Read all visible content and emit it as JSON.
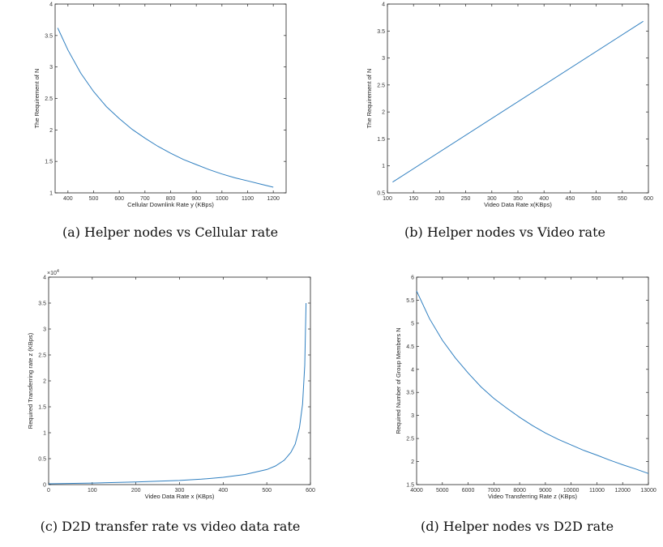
{
  "captions": [
    "(a) Helper nodes vs Cellular rate",
    "(b) Helper nodes vs Video rate",
    "(c) D2D transfer rate vs video data rate",
    "(d) Helper nodes vs D2D rate"
  ],
  "line_color": "#2f7fc0",
  "chart_data": [
    {
      "type": "line",
      "xlabel": "Cellular Downlink Rate y (KBps)",
      "ylabel": "The Requirement of N",
      "xlim": [
        350,
        1250
      ],
      "ylim": [
        1,
        4
      ],
      "xticks": [
        400,
        500,
        600,
        700,
        800,
        900,
        1000,
        1100,
        1200
      ],
      "yticks": [
        1,
        1.5,
        2,
        2.5,
        3,
        3.5,
        4
      ],
      "xtick_labels": [
        "400",
        "500",
        "600",
        "700",
        "800",
        "900",
        "1000",
        "1100",
        "1200"
      ],
      "ytick_labels": [
        "1",
        "1.5",
        "2",
        "2.5",
        "3",
        "3.5",
        "4"
      ],
      "series": [
        {
          "x": [
            360,
            400,
            450,
            500,
            550,
            600,
            650,
            700,
            750,
            800,
            850,
            900,
            950,
            1000,
            1050,
            1100,
            1150,
            1200
          ],
          "y": [
            3.62,
            3.27,
            2.9,
            2.61,
            2.37,
            2.18,
            2.01,
            1.87,
            1.74,
            1.63,
            1.53,
            1.45,
            1.37,
            1.3,
            1.24,
            1.19,
            1.14,
            1.09
          ]
        }
      ]
    },
    {
      "type": "line",
      "xlabel": "Video Data Rate x(KBps)",
      "ylabel": "The Requirement of N",
      "xlim": [
        100,
        600
      ],
      "ylim": [
        0.5,
        4
      ],
      "xticks": [
        100,
        150,
        200,
        250,
        300,
        350,
        400,
        450,
        500,
        550,
        600
      ],
      "yticks": [
        0.5,
        1,
        1.5,
        2,
        2.5,
        3,
        3.5,
        4
      ],
      "xtick_labels": [
        "100",
        "150",
        "200",
        "250",
        "300",
        "350",
        "400",
        "450",
        "500",
        "550",
        "600"
      ],
      "ytick_labels": [
        "0.5",
        "1",
        "1.5",
        "2",
        "2.5",
        "3",
        "3.5",
        "4"
      ],
      "series": [
        {
          "x": [
            110,
            590
          ],
          "y": [
            0.7,
            3.68
          ]
        }
      ]
    },
    {
      "type": "line",
      "xlabel": "Video Data Rate x (KBps)",
      "ylabel": "Required Transferring rate z (KBps)",
      "multiplier": "×10",
      "multiplier_exp": "4",
      "xlim": [
        0,
        600
      ],
      "ylim": [
        0,
        40000
      ],
      "xticks": [
        0,
        100,
        200,
        300,
        400,
        500,
        600
      ],
      "yticks": [
        0,
        5000,
        10000,
        15000,
        20000,
        25000,
        30000,
        35000,
        40000
      ],
      "xtick_labels": [
        "0",
        "100",
        "200",
        "300",
        "400",
        "500",
        "600"
      ],
      "ytick_labels": [
        "0",
        "0.5",
        "1",
        "1.5",
        "2",
        "2.5",
        "3",
        "3.5",
        "4"
      ],
      "series": [
        {
          "x": [
            0,
            100,
            200,
            300,
            350,
            400,
            450,
            500,
            520,
            540,
            555,
            565,
            575,
            582,
            587,
            590
          ],
          "y": [
            150,
            300,
            500,
            800,
            1050,
            1400,
            1950,
            2900,
            3600,
            4700,
            6200,
            7800,
            11000,
            15500,
            23000,
            35000
          ]
        }
      ]
    },
    {
      "type": "line",
      "xlabel": "Video Transferring Rate z (KBps)",
      "ylabel": "Required Number of Group Members N",
      "xlim": [
        4000,
        13000
      ],
      "ylim": [
        1.5,
        6
      ],
      "xticks": [
        4000,
        5000,
        6000,
        7000,
        8000,
        9000,
        10000,
        11000,
        12000,
        13000
      ],
      "yticks": [
        1.5,
        2,
        2.5,
        3,
        3.5,
        4,
        4.5,
        5,
        5.5,
        6
      ],
      "xtick_labels": [
        "4000",
        "5000",
        "6000",
        "7000",
        "8000",
        "9000",
        "10000",
        "11000",
        "12000",
        "13000"
      ],
      "ytick_labels": [
        "1.5",
        "2",
        "2.5",
        "3",
        "3.5",
        "4",
        "4.5",
        "5",
        "5.5",
        "6"
      ],
      "series": [
        {
          "x": [
            4000,
            4500,
            5000,
            5500,
            6000,
            6500,
            7000,
            7500,
            8000,
            8500,
            9000,
            9500,
            10000,
            10500,
            11000,
            11500,
            12000,
            12500,
            13000
          ],
          "y": [
            5.7,
            5.1,
            4.63,
            4.25,
            3.92,
            3.62,
            3.37,
            3.16,
            2.96,
            2.78,
            2.62,
            2.48,
            2.36,
            2.24,
            2.14,
            2.03,
            1.93,
            1.84,
            1.74
          ]
        }
      ]
    }
  ]
}
